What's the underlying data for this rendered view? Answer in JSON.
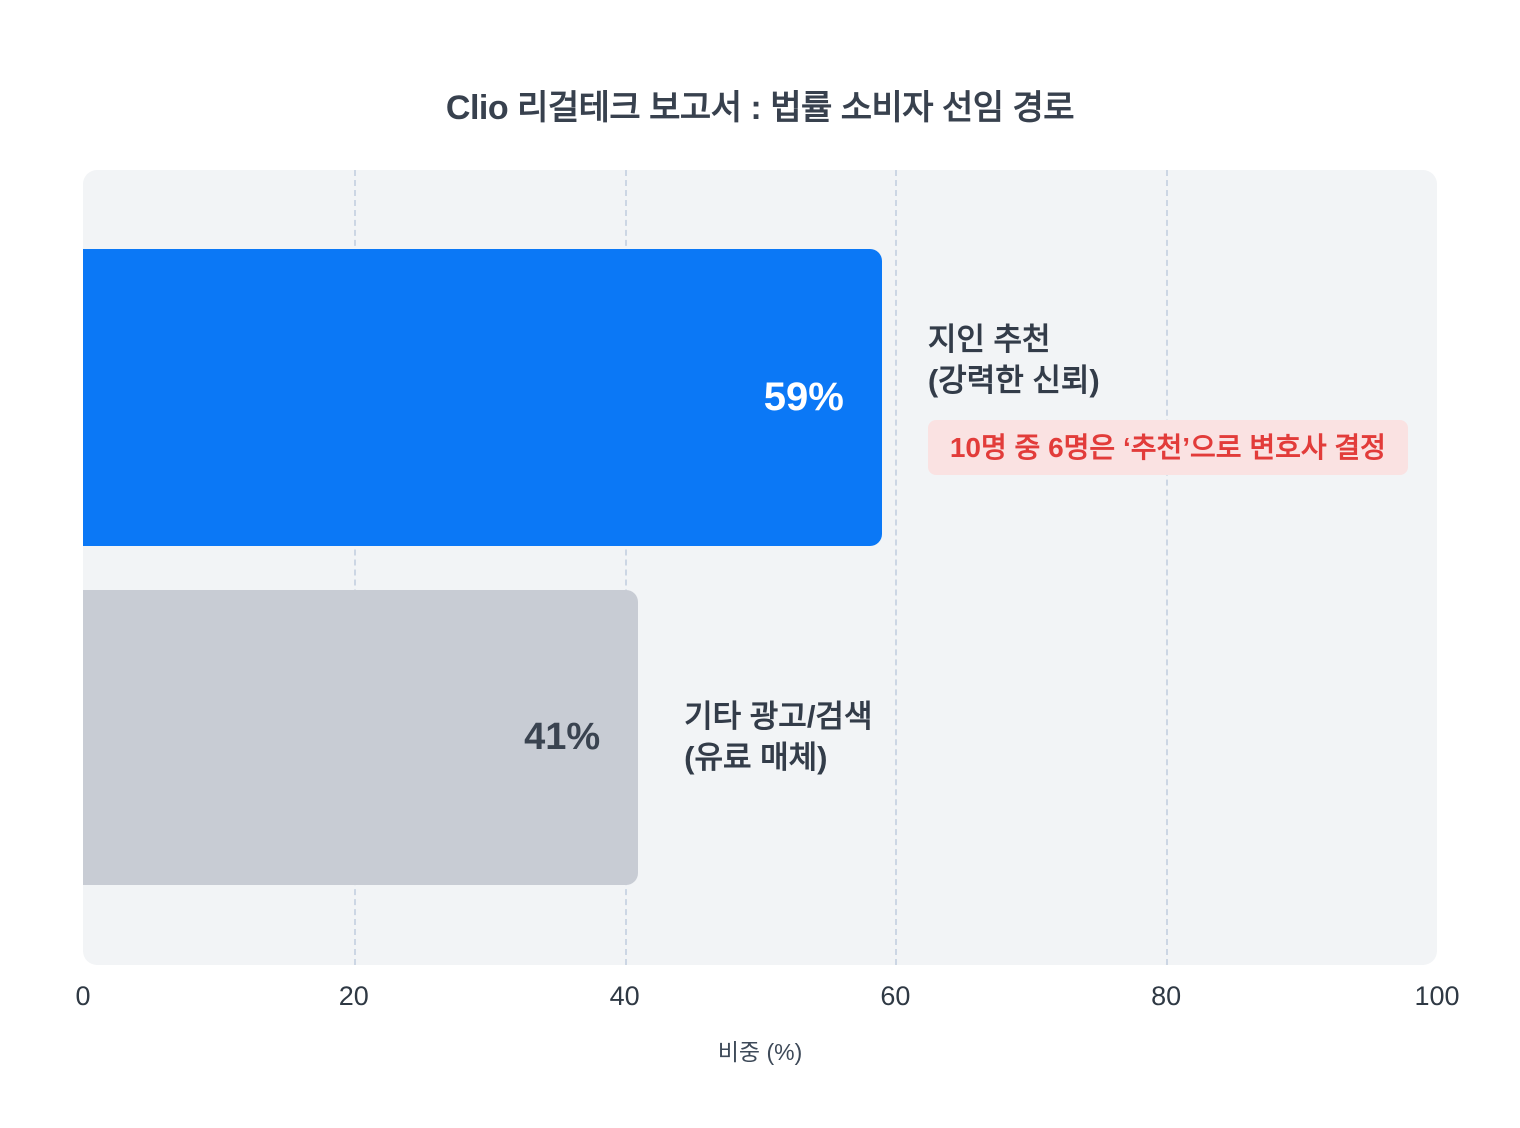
{
  "title": "Clio 리걸테크 보고서 : 법률 소비자 선임 경로",
  "chart_data": {
    "type": "bar",
    "orientation": "horizontal",
    "title": "Clio 리걸테크 보고서 : 법률 소비자 선임 경로",
    "categories": [
      "지인 추천 (강력한 신뢰)",
      "기타 광고/검색 (유료 매체)"
    ],
    "values": [
      59,
      41
    ],
    "xlabel": "비중 (%)",
    "ylabel": "",
    "xlim": [
      0,
      100
    ],
    "ticks": [
      0,
      20,
      40,
      60,
      80,
      100
    ],
    "gridlines": [
      20,
      40,
      60,
      80
    ],
    "grid": "dashed-vertical",
    "legend": "none",
    "annotations": [
      "10명 중 6명은 ‘추천’으로 변호사 결정"
    ]
  },
  "bars": {
    "referral": {
      "value": 59,
      "value_label": "59%",
      "label_line1": "지인 추천",
      "label_line2": "(강력한 신뢰)",
      "annotation": "10명 중 6명은 ‘추천’으로 변호사 결정",
      "color": "#0b78f6"
    },
    "ads": {
      "value": 41,
      "value_label": "41%",
      "label_line1": "기타 광고/검색",
      "label_line2": "(유료 매체)",
      "color": "#c8ccd4"
    }
  },
  "axis": {
    "title": "비중 (%)"
  },
  "colors": {
    "plot_background": "#f2f4f6",
    "bar_primary": "#0b78f6",
    "bar_secondary": "#c8ccd4",
    "gridline": "#ccd6e4",
    "title_text": "#38414e",
    "badge_background": "#fae2e2",
    "badge_text": "#e23c3a"
  }
}
